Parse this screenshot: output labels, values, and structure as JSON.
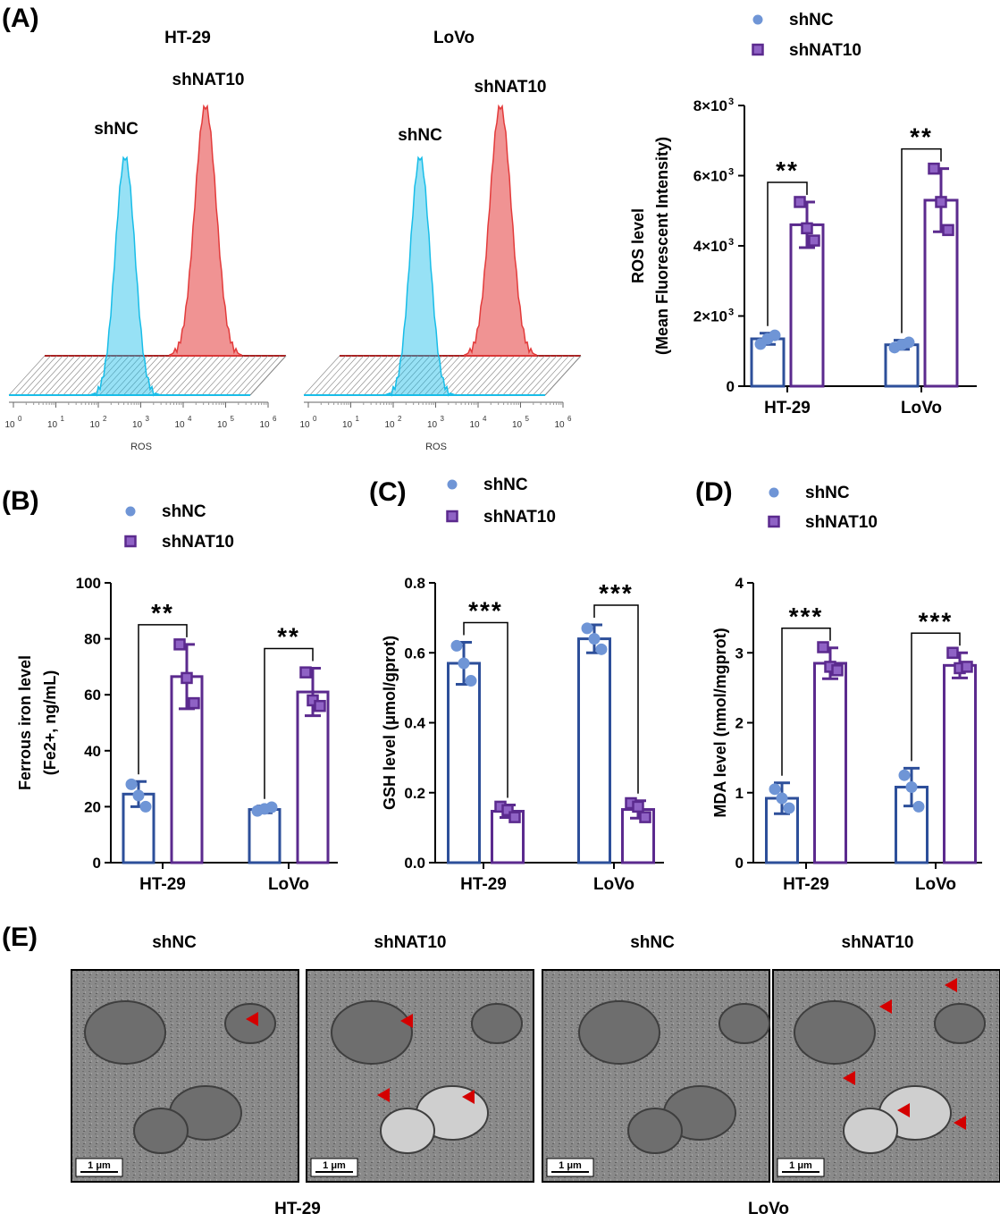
{
  "colors": {
    "shNC": "#2d4f9a",
    "shNC_fill": "#6f95d6",
    "shNAT10": "#5b2a8e",
    "shNAT10_fill": "#8f62c5",
    "hist_cyan": "#18bde8",
    "hist_red": "#e33b3b",
    "arrow": "#d40000"
  },
  "panel_labels": [
    "(A)",
    "(B)",
    "(C)",
    "(D)",
    "(E)"
  ],
  "flow": {
    "panels": [
      {
        "cell": "HT-29",
        "shNC_label": "shNC",
        "shNAT10_label": "shNAT10"
      },
      {
        "cell": "LoVo",
        "shNC_label": "shNC",
        "shNAT10_label": "shNAT10"
      }
    ],
    "x_tick_labels": [
      "0",
      "1",
      "2",
      "3",
      "4",
      "5",
      "6"
    ],
    "x_tick_base": "10",
    "xlabel": "ROS"
  },
  "legend": {
    "shNC": "shNC",
    "shNAT10": "shNAT10"
  },
  "chart_data": [
    {
      "panel": "A",
      "type": "bar",
      "categories": [
        "HT-29",
        "LoVo"
      ],
      "ylabel_line1": "ROS level",
      "ylabel_line2": "(Mean Fluorescent Intensity)",
      "ylim": [
        0,
        8000
      ],
      "yticks": [
        0,
        2000,
        4000,
        6000,
        8000
      ],
      "ytick_labels": [
        "0",
        "2×10",
        "4×10",
        "6×10",
        "8×10"
      ],
      "ytick_sup": [
        "",
        "3",
        "3",
        "3",
        "3"
      ],
      "series": [
        {
          "name": "shNC",
          "values": [
            1350,
            1180
          ],
          "errors": [
            160,
            130
          ],
          "points": [
            [
              1200,
              1350,
              1450
            ],
            [
              1100,
              1180,
              1250
            ]
          ]
        },
        {
          "name": "shNAT10",
          "values": [
            4600,
            5300
          ],
          "errors": [
            650,
            900
          ],
          "points": [
            [
              5250,
              4500,
              4150
            ],
            [
              6200,
              5250,
              4450
            ]
          ]
        }
      ],
      "significance": [
        "**",
        "**"
      ]
    },
    {
      "panel": "B",
      "type": "bar",
      "categories": [
        "HT-29",
        "LoVo"
      ],
      "ylabel_line1": "Ferrous iron level",
      "ylabel_line2": "(Fe2+, ng/mL)",
      "ylim": [
        0,
        100
      ],
      "yticks": [
        0,
        20,
        40,
        60,
        80,
        100
      ],
      "ytick_labels": [
        "0",
        "20",
        "40",
        "60",
        "80",
        "100"
      ],
      "series": [
        {
          "name": "shNC",
          "values": [
            24.5,
            19
          ],
          "errors": [
            4.5,
            1.2
          ],
          "points": [
            [
              28,
              24,
              20
            ],
            [
              18.5,
              19.2,
              19.8
            ]
          ]
        },
        {
          "name": "shNAT10",
          "values": [
            66.5,
            61
          ],
          "errors": [
            11.5,
            8.5
          ],
          "points": [
            [
              78,
              66,
              57
            ],
            [
              68,
              58,
              56
            ]
          ]
        }
      ],
      "significance": [
        "**",
        "**"
      ]
    },
    {
      "panel": "C",
      "type": "bar",
      "categories": [
        "HT-29",
        "LoVo"
      ],
      "ylabel_line1": "GSH level (μmol/gprot)",
      "ylim": [
        0,
        0.8
      ],
      "yticks": [
        0,
        0.2,
        0.4,
        0.6,
        0.8
      ],
      "ytick_labels": [
        "0.0",
        "0.2",
        "0.4",
        "0.6",
        "0.8"
      ],
      "series": [
        {
          "name": "shNC",
          "values": [
            0.57,
            0.64
          ],
          "errors": [
            0.06,
            0.04
          ],
          "points": [
            [
              0.62,
              0.57,
              0.52
            ],
            [
              0.67,
              0.64,
              0.61
            ]
          ]
        },
        {
          "name": "shNAT10",
          "values": [
            0.147,
            0.152
          ],
          "errors": [
            0.018,
            0.025
          ],
          "points": [
            [
              0.16,
              0.15,
              0.13
            ],
            [
              0.17,
              0.16,
              0.13
            ]
          ]
        }
      ],
      "significance": [
        "***",
        "***"
      ]
    },
    {
      "panel": "D",
      "type": "bar",
      "categories": [
        "HT-29",
        "LoVo"
      ],
      "ylabel_line1": "MDA level (nmol/mgprot)",
      "ylim": [
        0,
        4
      ],
      "yticks": [
        0,
        1,
        2,
        3,
        4
      ],
      "ytick_labels": [
        "0",
        "1",
        "2",
        "3",
        "4"
      ],
      "series": [
        {
          "name": "shNC",
          "values": [
            0.92,
            1.08
          ],
          "errors": [
            0.22,
            0.27
          ],
          "points": [
            [
              1.05,
              0.92,
              0.78
            ],
            [
              1.25,
              1.08,
              0.8
            ]
          ]
        },
        {
          "name": "shNAT10",
          "values": [
            2.85,
            2.82
          ],
          "errors": [
            0.22,
            0.18
          ],
          "points": [
            [
              3.08,
              2.8,
              2.75
            ],
            [
              3.0,
              2.78,
              2.8
            ]
          ]
        }
      ],
      "significance": [
        "***",
        "***"
      ]
    }
  ],
  "em": {
    "headers": [
      "shNC",
      "shNAT10",
      "shNC",
      "shNAT10"
    ],
    "scale_label": "1 μm",
    "group_labels": [
      "HT-29",
      "LoVo"
    ]
  }
}
